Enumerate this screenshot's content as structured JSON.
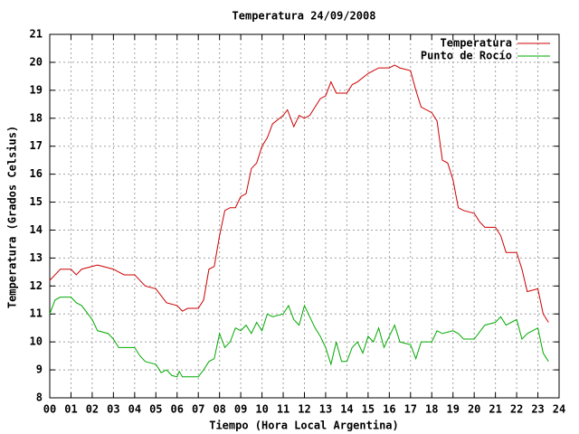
{
  "chart_data": {
    "type": "line",
    "title": "Temperatura 24/09/2008",
    "xlabel": "Tiempo (Hora Local Argentina)",
    "ylabel": "Temperatura (Grados Celsius)",
    "xlim": [
      0,
      24
    ],
    "ylim": [
      8,
      21
    ],
    "xticks": [
      {
        "value": 0,
        "label": "00"
      },
      {
        "value": 1,
        "label": "01"
      },
      {
        "value": 2,
        "label": "02"
      },
      {
        "value": 3,
        "label": "03"
      },
      {
        "value": 4,
        "label": "04"
      },
      {
        "value": 5,
        "label": "05"
      },
      {
        "value": 6,
        "label": "06"
      },
      {
        "value": 7,
        "label": "07"
      },
      {
        "value": 8,
        "label": "08"
      },
      {
        "value": 9,
        "label": "09"
      },
      10,
      11,
      12,
      13,
      14,
      15,
      16,
      17,
      18,
      19,
      20,
      21,
      22,
      23,
      24
    ],
    "yticks": [
      8,
      9,
      10,
      11,
      12,
      13,
      14,
      15,
      16,
      17,
      18,
      19,
      20,
      21
    ],
    "grid": true,
    "legend": "top-right",
    "series": [
      {
        "name": "Temperatura",
        "color": "#cc0000",
        "x": [
          0,
          0.25,
          0.5,
          1,
          1.25,
          1.5,
          2,
          2.25,
          2.5,
          3,
          3.5,
          4,
          4.5,
          5,
          5.5,
          6,
          6.25,
          6.5,
          7,
          7.25,
          7.5,
          7.75,
          8,
          8.25,
          8.5,
          8.75,
          9,
          9.25,
          9.5,
          9.75,
          10,
          10.25,
          10.5,
          11,
          11.2,
          11.5,
          11.75,
          12,
          12.25,
          12.5,
          12.75,
          13,
          13.25,
          13.5,
          14,
          14.25,
          14.5,
          15,
          15.25,
          15.5,
          16,
          16.25,
          16.5,
          17,
          17.25,
          17.5,
          18,
          18.25,
          18.5,
          18.75,
          19,
          19.25,
          19.5,
          20,
          20.25,
          20.5,
          21,
          21.25,
          21.5,
          22,
          22.25,
          22.5,
          23,
          23.25,
          23.5
        ],
        "values": [
          12.2,
          12.4,
          12.6,
          12.6,
          12.4,
          12.6,
          12.7,
          12.75,
          12.7,
          12.6,
          12.4,
          12.4,
          12.0,
          11.9,
          11.4,
          11.3,
          11.1,
          11.2,
          11.2,
          11.5,
          12.6,
          12.7,
          13.8,
          14.7,
          14.8,
          14.8,
          15.2,
          15.3,
          16.2,
          16.4,
          17.0,
          17.3,
          17.8,
          18.1,
          18.3,
          17.7,
          18.1,
          18.0,
          18.1,
          18.4,
          18.7,
          18.8,
          19.3,
          18.9,
          18.9,
          19.2,
          19.3,
          19.6,
          19.7,
          19.8,
          19.8,
          19.9,
          19.8,
          19.7,
          19.0,
          18.4,
          18.2,
          17.9,
          16.5,
          16.4,
          15.8,
          14.8,
          14.7,
          14.6,
          14.3,
          14.1,
          14.1,
          13.8,
          13.2,
          13.2,
          12.6,
          11.8,
          11.9,
          11.0,
          10.7
        ]
      },
      {
        "name": "Punto de Rocío",
        "color": "#00aa00",
        "x": [
          0,
          0.25,
          0.5,
          1,
          1.25,
          1.5,
          2,
          2.25,
          2.75,
          3,
          3.25,
          4,
          4.25,
          4.5,
          5,
          5.25,
          5.5,
          5.75,
          6,
          6.1,
          6.25,
          7,
          7.25,
          7.5,
          7.75,
          8,
          8.25,
          8.5,
          8.75,
          9,
          9.25,
          9.5,
          9.75,
          10,
          10.25,
          10.5,
          11,
          11.25,
          11.5,
          11.75,
          12,
          12.25,
          12.5,
          12.75,
          13,
          13.25,
          13.5,
          13.75,
          14,
          14.25,
          14.5,
          14.75,
          15,
          15.25,
          15.5,
          15.75,
          16,
          16.25,
          16.5,
          17,
          17.25,
          17.5,
          18,
          18.25,
          18.5,
          19,
          19.25,
          19.5,
          20,
          20.5,
          21,
          21.25,
          21.5,
          22,
          22.25,
          22.5,
          23,
          23.25,
          23.5
        ],
        "values": [
          11.0,
          11.5,
          11.6,
          11.6,
          11.4,
          11.3,
          10.8,
          10.4,
          10.3,
          10.1,
          9.8,
          9.8,
          9.5,
          9.3,
          9.2,
          8.9,
          9.0,
          8.8,
          8.75,
          8.95,
          8.75,
          8.75,
          9.0,
          9.3,
          9.4,
          10.3,
          9.8,
          10.0,
          10.5,
          10.4,
          10.6,
          10.3,
          10.7,
          10.4,
          11.0,
          10.9,
          11.0,
          11.3,
          10.8,
          10.6,
          11.3,
          10.9,
          10.5,
          10.2,
          9.8,
          9.2,
          10.0,
          9.3,
          9.3,
          9.8,
          10.0,
          9.6,
          10.2,
          10.0,
          10.5,
          9.8,
          10.2,
          10.6,
          10.0,
          9.9,
          9.4,
          10.0,
          10.0,
          10.4,
          10.3,
          10.4,
          10.3,
          10.1,
          10.1,
          10.6,
          10.7,
          10.9,
          10.6,
          10.8,
          10.1,
          10.3,
          10.5,
          9.6,
          9.3
        ]
      }
    ]
  }
}
